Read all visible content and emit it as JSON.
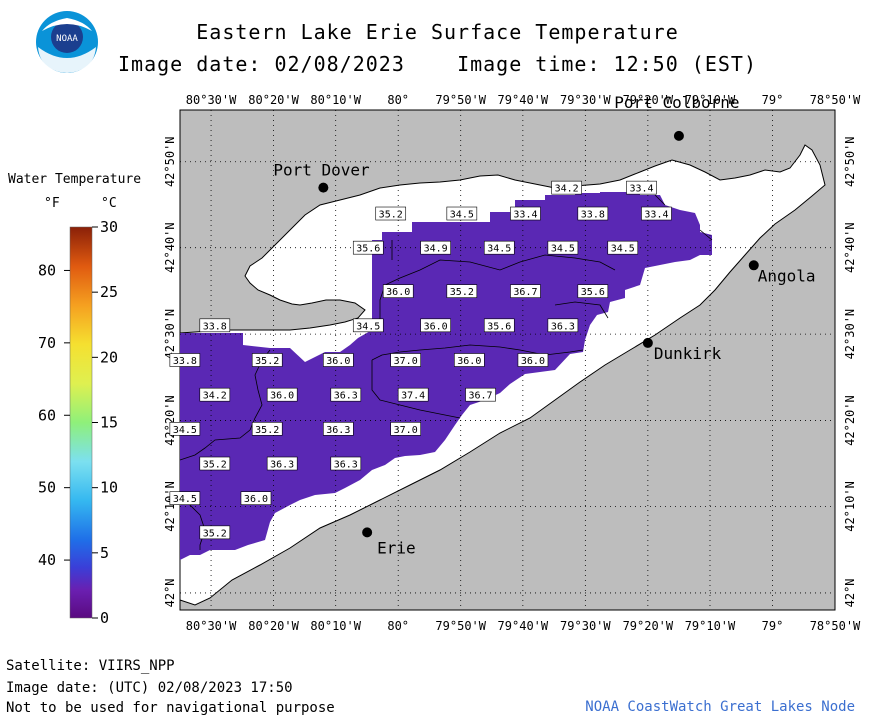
{
  "title": "Eastern Lake Erie Surface Temperature",
  "image_date_label": "Image date: 02/08/2023",
  "image_time_label": "Image time: 12:50 (EST)",
  "logo_text": "NOAA",
  "legend": {
    "title": "Water Temperature",
    "unit_f": "°F",
    "unit_c": "°C",
    "f_ticks": [
      {
        "label": "80",
        "value_f": 80
      },
      {
        "label": "70",
        "value_f": 70
      },
      {
        "label": "60",
        "value_f": 60
      },
      {
        "label": "50",
        "value_f": 50
      },
      {
        "label": "40",
        "value_f": 40
      }
    ],
    "c_ticks": [
      {
        "label": "30",
        "value_c": 30
      },
      {
        "label": "25",
        "value_c": 25
      },
      {
        "label": "20",
        "value_c": 20
      },
      {
        "label": "15",
        "value_c": 15
      },
      {
        "label": "10",
        "value_c": 10
      },
      {
        "label": "5",
        "value_c": 5
      },
      {
        "label": "0",
        "value_c": 0
      }
    ],
    "range_c": [
      0,
      30
    ]
  },
  "map": {
    "lon_range": [
      -80.583,
      -78.833
    ],
    "lat_range": [
      41.967,
      42.933
    ],
    "lon_ticks": [
      {
        "label": "80°30'W",
        "lon": -80.5
      },
      {
        "label": "80°20'W",
        "lon": -80.333
      },
      {
        "label": "80°10'W",
        "lon": -80.167
      },
      {
        "label": "80°",
        "lon": -80.0
      },
      {
        "label": "79°50'W",
        "lon": -79.833
      },
      {
        "label": "79°40'W",
        "lon": -79.667
      },
      {
        "label": "79°30'W",
        "lon": -79.5
      },
      {
        "label": "79°20'W",
        "lon": -79.333
      },
      {
        "label": "79°10'W",
        "lon": -79.167
      },
      {
        "label": "79°",
        "lon": -79.0
      },
      {
        "label": "78°50'W",
        "lon": -78.833
      }
    ],
    "lat_ticks": [
      {
        "label": "42°50'N",
        "lat": 42.833
      },
      {
        "label": "42°40'N",
        "lat": 42.667
      },
      {
        "label": "42°30'N",
        "lat": 42.5
      },
      {
        "label": "42°20'N",
        "lat": 42.333
      },
      {
        "label": "42°10'N",
        "lat": 42.167
      },
      {
        "label": "42°N",
        "lat": 42.0
      }
    ],
    "cities": [
      {
        "name": "Port Colborne",
        "lon": -79.25,
        "lat": 42.883
      },
      {
        "name": "Port Dover",
        "lon": -80.2,
        "lat": 42.783
      },
      {
        "name": "Angola",
        "lon": -79.05,
        "lat": 42.633
      },
      {
        "name": "Dunkirk",
        "lon": -79.333,
        "lat": 42.483
      },
      {
        "name": "Erie",
        "lon": -80.083,
        "lat": 42.117
      }
    ],
    "temperatures_f": [
      {
        "label": "34.2",
        "lon": -79.55,
        "lat": 42.783
      },
      {
        "label": "33.4",
        "lon": -79.35,
        "lat": 42.783
      },
      {
        "label": "35.2",
        "lon": -80.02,
        "lat": 42.733
      },
      {
        "label": "34.5",
        "lon": -79.83,
        "lat": 42.733
      },
      {
        "label": "33.4",
        "lon": -79.66,
        "lat": 42.733
      },
      {
        "label": "33.8",
        "lon": -79.48,
        "lat": 42.733
      },
      {
        "label": "33.4",
        "lon": -79.31,
        "lat": 42.733
      },
      {
        "label": "35.6",
        "lon": -80.08,
        "lat": 42.667
      },
      {
        "label": "34.9",
        "lon": -79.9,
        "lat": 42.667
      },
      {
        "label": "34.5",
        "lon": -79.73,
        "lat": 42.667
      },
      {
        "label": "34.5",
        "lon": -79.56,
        "lat": 42.667
      },
      {
        "label": "34.5",
        "lon": -79.4,
        "lat": 42.667
      },
      {
        "label": "36.0",
        "lon": -80.0,
        "lat": 42.583
      },
      {
        "label": "35.2",
        "lon": -79.83,
        "lat": 42.583
      },
      {
        "label": "36.7",
        "lon": -79.66,
        "lat": 42.583
      },
      {
        "label": "35.6",
        "lon": -79.48,
        "lat": 42.583
      },
      {
        "label": "33.8",
        "lon": -80.49,
        "lat": 42.517
      },
      {
        "label": "34.5",
        "lon": -80.08,
        "lat": 42.517
      },
      {
        "label": "36.0",
        "lon": -79.9,
        "lat": 42.517
      },
      {
        "label": "35.6",
        "lon": -79.73,
        "lat": 42.517
      },
      {
        "label": "36.3",
        "lon": -79.56,
        "lat": 42.517
      },
      {
        "label": "33.8",
        "lon": -80.57,
        "lat": 42.45
      },
      {
        "label": "35.2",
        "lon": -80.35,
        "lat": 42.45
      },
      {
        "label": "36.0",
        "lon": -80.16,
        "lat": 42.45
      },
      {
        "label": "37.0",
        "lon": -79.98,
        "lat": 42.45
      },
      {
        "label": "36.0",
        "lon": -79.81,
        "lat": 42.45
      },
      {
        "label": "36.0",
        "lon": -79.64,
        "lat": 42.45
      },
      {
        "label": "34.2",
        "lon": -80.49,
        "lat": 42.383
      },
      {
        "label": "36.0",
        "lon": -80.31,
        "lat": 42.383
      },
      {
        "label": "36.3",
        "lon": -80.14,
        "lat": 42.383
      },
      {
        "label": "37.4",
        "lon": -79.96,
        "lat": 42.383
      },
      {
        "label": "36.7",
        "lon": -79.78,
        "lat": 42.383
      },
      {
        "label": "34.5",
        "lon": -80.57,
        "lat": 42.317
      },
      {
        "label": "35.2",
        "lon": -80.35,
        "lat": 42.317
      },
      {
        "label": "36.3",
        "lon": -80.16,
        "lat": 42.317
      },
      {
        "label": "37.0",
        "lon": -79.98,
        "lat": 42.317
      },
      {
        "label": "35.2",
        "lon": -80.49,
        "lat": 42.25
      },
      {
        "label": "36.3",
        "lon": -80.31,
        "lat": 42.25
      },
      {
        "label": "36.3",
        "lon": -80.14,
        "lat": 42.25
      },
      {
        "label": "34.5",
        "lon": -80.57,
        "lat": 42.183
      },
      {
        "label": "36.0",
        "lon": -80.38,
        "lat": 42.183
      },
      {
        "label": "35.2",
        "lon": -80.49,
        "lat": 42.117
      }
    ]
  },
  "footer": {
    "satellite": "Satellite: VIIRS_NPP",
    "image_date_utc": "Image date: (UTC) 02/08/2023  17:50",
    "disclaimer": "Not to be used for navigational purpose",
    "credit": "NOAA CoastWatch Great Lakes Node"
  },
  "colors": {
    "land": "#bdbdbd",
    "water_nodata": "#ffffff",
    "water_temp": "#5a28b4",
    "city_dot": "#000000",
    "credit": "#3b6fd0"
  }
}
